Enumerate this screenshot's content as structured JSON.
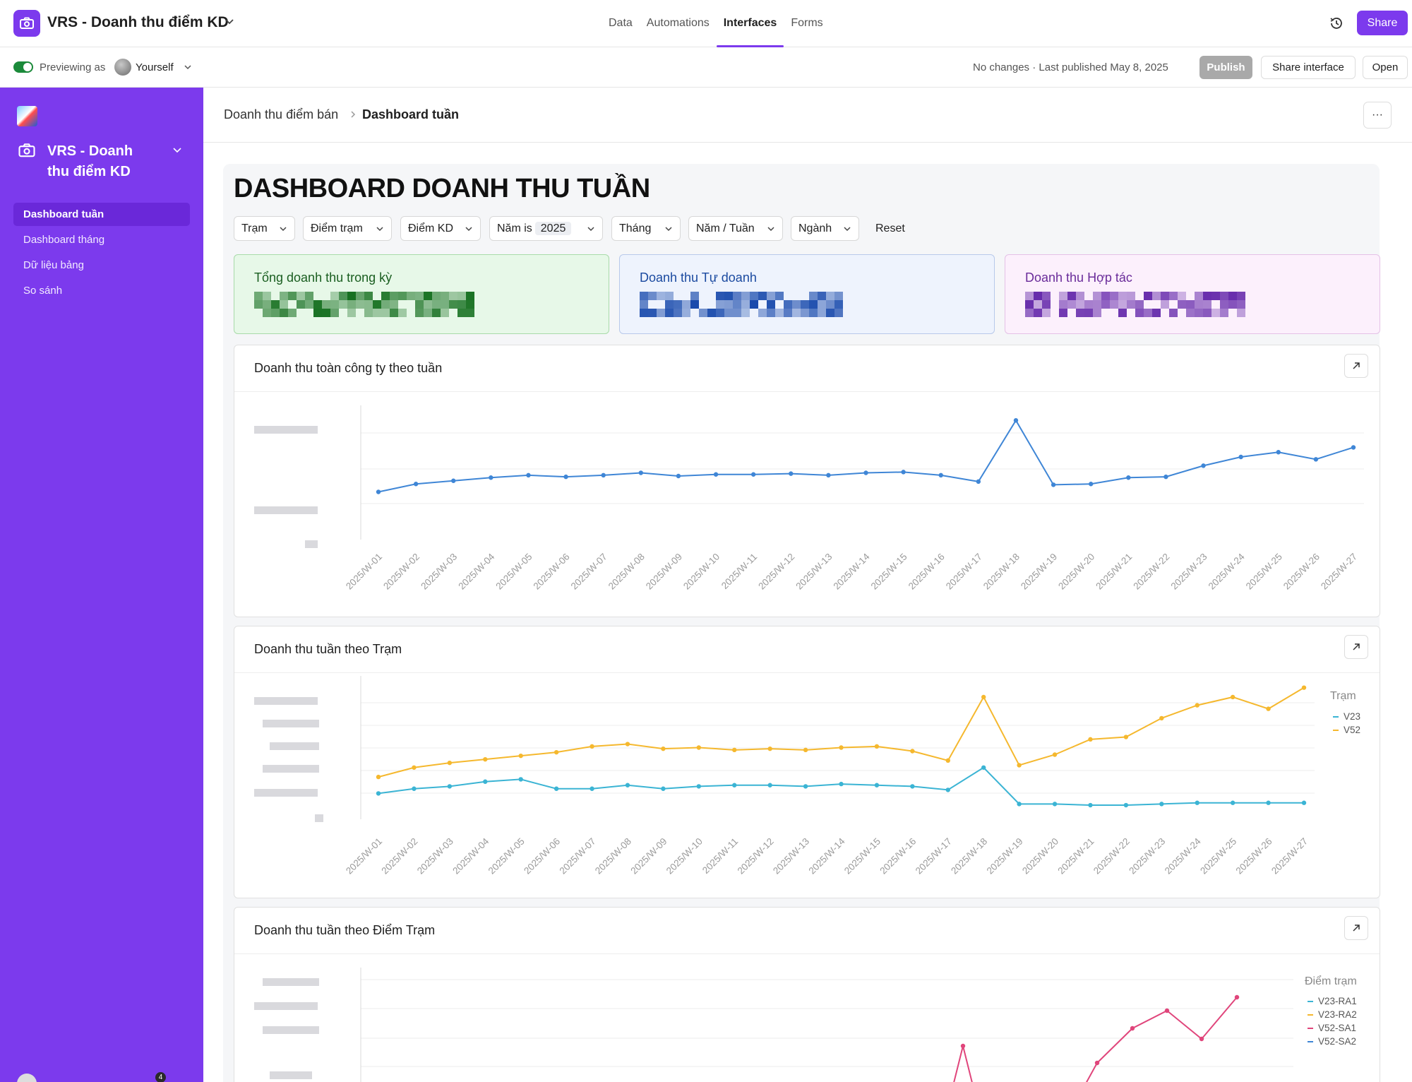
{
  "topbar": {
    "app_title": "VRS - Doanh thu điểm KD",
    "nav": [
      "Data",
      "Automations",
      "Interfaces",
      "Forms"
    ],
    "active_nav": "Interfaces",
    "share_label": "Share"
  },
  "subbar": {
    "previewing_label": "Previewing as",
    "user_label": "Yourself",
    "status": "No changes · Last published May 8, 2025",
    "publish_label": "Publish",
    "share_interface_label": "Share interface",
    "open_label": "Open"
  },
  "sidebar": {
    "title": "VRS - Doanh thu điểm KD",
    "items": [
      {
        "label": "Dashboard tuần",
        "active": true
      },
      {
        "label": "Dashboard tháng",
        "active": false
      },
      {
        "label": "Dữ liệu bảng",
        "active": false
      },
      {
        "label": "So sánh",
        "active": false
      }
    ],
    "badge": "4"
  },
  "breadcrumb": {
    "parent": "Doanh thu điểm bán",
    "current": "Dashboard tuần",
    "more_label": "···"
  },
  "dashboard": {
    "title": "DASHBOARD DOANH THU TUẦN",
    "filters": [
      {
        "label": "Trạm"
      },
      {
        "label": "Điểm trạm"
      },
      {
        "label": "Điểm KD"
      },
      {
        "label": "Năm is",
        "value": "2025"
      },
      {
        "label": "Tháng"
      },
      {
        "label": "Năm / Tuần"
      },
      {
        "label": "Ngành"
      }
    ],
    "reset_label": "Reset",
    "kpis": [
      {
        "label": "Tổng doanh thu trong kỳ",
        "color": "#1a5e20"
      },
      {
        "label": "Doanh thu Tự doanh",
        "color": "#1b4aa0"
      },
      {
        "label": "Doanh thu Hợp tác",
        "color": "#6a2c9a"
      }
    ]
  },
  "charts": {
    "chart1_title": "Doanh thu toàn công ty theo tuần",
    "chart2_title": "Doanh thu tuần theo Trạm",
    "chart3_title": "Doanh thu tuần theo Điểm Trạm",
    "legend2_title": "Trạm",
    "legend2_items": [
      {
        "name": "V23",
        "color": "#3bb4d4"
      },
      {
        "name": "V52",
        "color": "#f5b82e"
      }
    ],
    "legend3_title": "Điểm trạm",
    "legend3_items": [
      {
        "name": "V23-RA1",
        "color": "#3bb4d4"
      },
      {
        "name": "V23-RA2",
        "color": "#f5b82e"
      },
      {
        "name": "V52-SA1",
        "color": "#e0457b"
      },
      {
        "name": "V52-SA2",
        "color": "#3f86d6"
      }
    ]
  },
  "chart_data": [
    {
      "type": "line",
      "title": "Doanh thu toàn công ty theo tuần",
      "x": [
        "2025/W-01",
        "2025/W-02",
        "2025/W-03",
        "2025/W-04",
        "2025/W-05",
        "2025/W-06",
        "2025/W-07",
        "2025/W-08",
        "2025/W-09",
        "2025/W-10",
        "2025/W-11",
        "2025/W-12",
        "2025/W-13",
        "2025/W-14",
        "2025/W-15",
        "2025/W-16",
        "2025/W-17",
        "2025/W-18",
        "2025/W-19",
        "2025/W-20",
        "2025/W-21",
        "2025/W-22",
        "2025/W-23",
        "2025/W-24",
        "2025/W-25",
        "2025/W-26",
        "2025/W-27"
      ],
      "series": [
        {
          "color": "#3f86d6",
          "values": [
            30,
            35,
            37,
            39,
            40.5,
            39.5,
            40.5,
            42,
            40,
            41,
            41,
            41.5,
            40.5,
            42,
            42.5,
            40.5,
            36.5,
            75,
            34.5,
            35,
            39,
            39.5,
            46.5,
            52,
            55,
            50.5,
            58
          ]
        }
      ],
      "ylim": [
        0,
        80
      ],
      "grid": true
    },
    {
      "type": "line",
      "title": "Doanh thu tuần theo Trạm",
      "x": [
        "2025/W-01",
        "2025/W-02",
        "2025/W-03",
        "2025/W-04",
        "2025/W-05",
        "2025/W-06",
        "2025/W-07",
        "2025/W-08",
        "2025/W-09",
        "2025/W-10",
        "2025/W-11",
        "2025/W-12",
        "2025/W-13",
        "2025/W-14",
        "2025/W-15",
        "2025/W-16",
        "2025/W-17",
        "2025/W-18",
        "2025/W-19",
        "2025/W-20",
        "2025/W-21",
        "2025/W-22",
        "2025/W-23",
        "2025/W-24",
        "2025/W-25",
        "2025/W-26",
        "2025/W-27"
      ],
      "series": [
        {
          "name": "V23",
          "color": "#3bb4d4",
          "values": [
            11,
            13,
            14,
            16,
            17,
            13,
            13,
            14.5,
            13,
            14,
            14.5,
            14.5,
            14,
            15,
            14.5,
            14,
            12.5,
            22,
            6.5,
            6.5,
            6,
            6,
            6.5,
            7,
            7,
            7,
            7
          ]
        },
        {
          "name": "V52",
          "color": "#f5b82e",
          "values": [
            18,
            22,
            24,
            25.5,
            27,
            28.5,
            31,
            32,
            30,
            30.5,
            29.5,
            30,
            29.5,
            30.5,
            31,
            29,
            25,
            52,
            23,
            27.5,
            34,
            35,
            43,
            48.5,
            52,
            47,
            56
          ]
        }
      ],
      "legend": "right",
      "grid": true
    },
    {
      "type": "line",
      "title": "Doanh thu tuần theo Điểm Trạm",
      "series": [
        {
          "name": "V23-RA1",
          "color": "#3bb4d4"
        },
        {
          "name": "V23-RA2",
          "color": "#f5b82e"
        },
        {
          "name": "V52-SA1",
          "color": "#e0457b"
        },
        {
          "name": "V52-SA2",
          "color": "#3f86d6"
        }
      ],
      "legend": "right",
      "grid": true
    }
  ]
}
